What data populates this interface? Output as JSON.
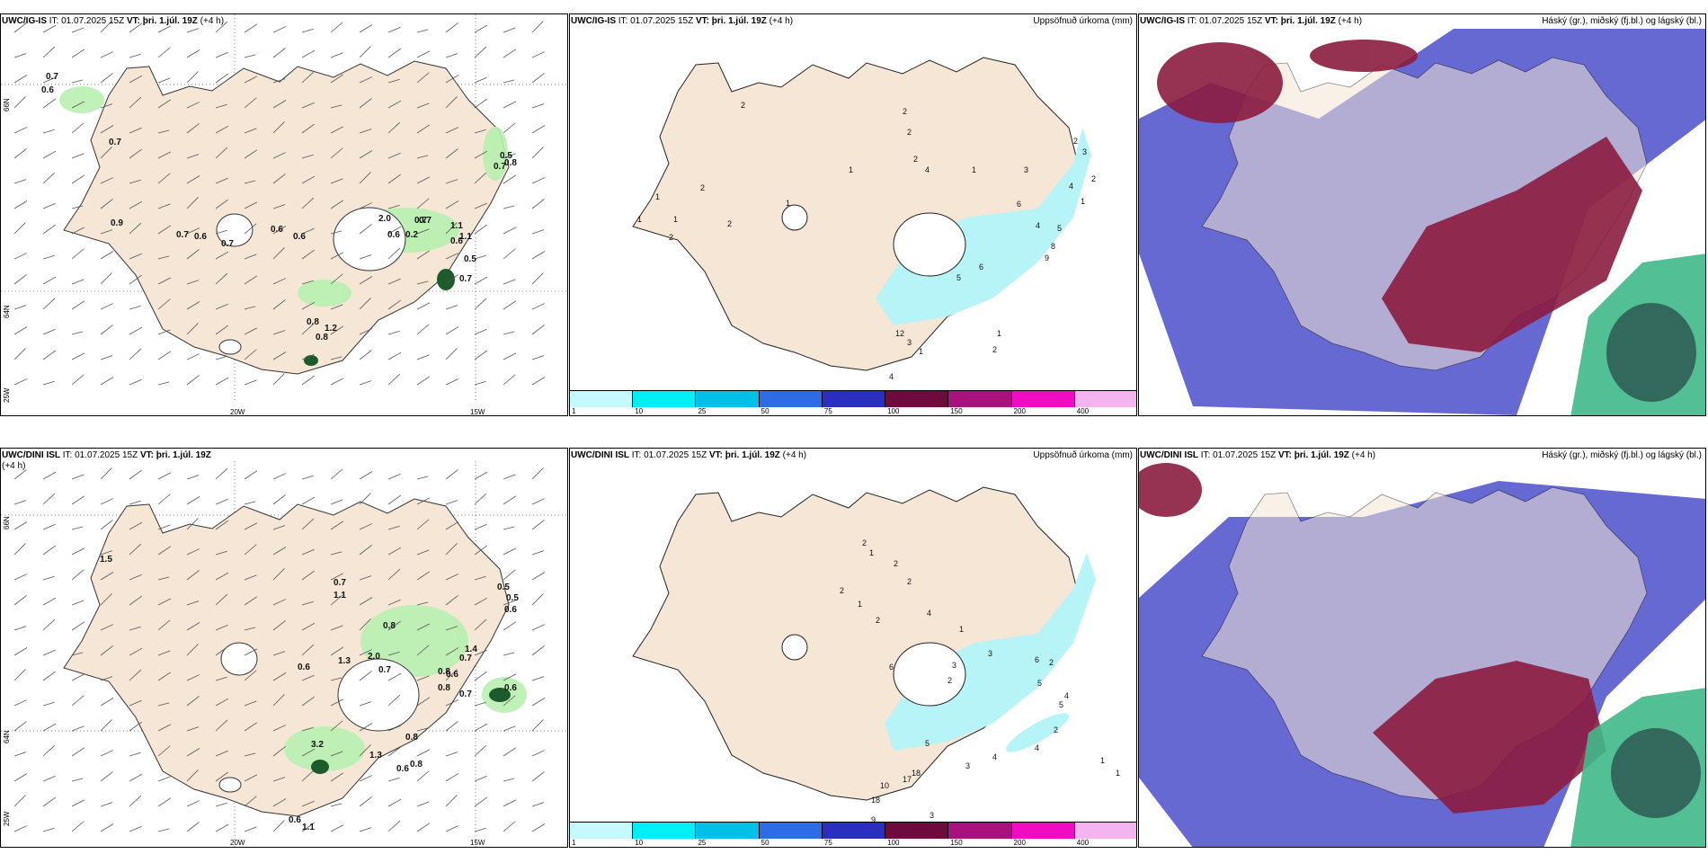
{
  "colors": {
    "land": "#f5e6d6",
    "green_light": "#b8f0b0",
    "green_dark": "#1d5a2c",
    "cyan_precip": "#b6f4f7",
    "cloud_high": "#8b1c3f",
    "cloud_mid": "#4b4fc9",
    "cloud_low": "#3fb88a"
  },
  "rows": [
    {
      "model": "UWC/IG-IS",
      "it_label": "IT:",
      "it_value": "01.07.2025 15Z",
      "vt_label": "VT:",
      "vt_value": "þri. 1.júl. 19Z",
      "lead": "(+4 h)",
      "precip_title": "Uppsöfnuð úrkoma (mm)",
      "cloud_title": "Háský (gr.), miðský (fj.bl.) og lágský (bl.)",
      "lon_labels": [
        "20W",
        "15W"
      ],
      "lat_labels": [
        "66N",
        "64N",
        "25W"
      ],
      "wind_values": [
        "0.7",
        "0.6",
        "0.7",
        "0.9",
        "0.7",
        "0.6",
        "0.7",
        "0.6",
        "0.6",
        "2.0",
        "0.7",
        "0.6",
        "0.2",
        "0.7",
        "1.1",
        "0.5",
        "0.7",
        "0.6",
        "0.8",
        "1.2",
        "0.8",
        "1.1",
        "0.5",
        "0.8",
        "0.7"
      ],
      "precip_values": [
        "2",
        "2",
        "1",
        "1",
        "1",
        "2",
        "2",
        "1",
        "2",
        "2",
        "2",
        "1",
        "4",
        "1",
        "3",
        "2",
        "3",
        "4",
        "1",
        "6",
        "4",
        "5",
        "8",
        "9",
        "6",
        "5",
        "12",
        "3",
        "1",
        "1",
        "2",
        "4",
        "2"
      ]
    },
    {
      "model": "UWC/DINI ISL",
      "it_label": "IT:",
      "it_value": "01.07.2025 15Z",
      "vt_label": "VT:",
      "vt_value": "þri. 1.júl. 19Z",
      "lead": "(+4 h)",
      "precip_title": "Uppsöfnuð úrkoma (mm)",
      "cloud_title": "Háský (gr.), miðský (fj.bl.) og lágský (bl.)",
      "lon_labels": [
        "20W",
        "15W"
      ],
      "lat_labels": [
        "66N",
        "64N",
        "25W"
      ],
      "wind_values": [
        "1.5",
        "0.7",
        "1.1",
        "0.8",
        "2.0",
        "0.6",
        "1.3",
        "0.7",
        "0.8",
        "1.4",
        "0.5",
        "0.5",
        "0.6",
        "0.8",
        "0.7",
        "0.6",
        "0.8",
        "0.7",
        "0.6",
        "3.2",
        "1.3",
        "0.8",
        "0.6",
        "0.6",
        "1.1"
      ],
      "precip_values": [
        "2",
        "2",
        "1",
        "2",
        "1",
        "2",
        "4",
        "2",
        "1",
        "3",
        "2",
        "6",
        "3",
        "2",
        "6",
        "5",
        "4",
        "5",
        "2",
        "4",
        "4",
        "3",
        "18",
        "17",
        "5",
        "10",
        "3",
        "18",
        "9",
        "1",
        "1",
        "2",
        "1",
        "1"
      ]
    }
  ],
  "colorbar": {
    "ticks": [
      "1",
      "10",
      "25",
      "50",
      "75",
      "100",
      "150",
      "200",
      "400"
    ],
    "colors": [
      "#c4fafc",
      "#00eef5",
      "#00bfe8",
      "#2e6be6",
      "#2b2fbf",
      "#6e0a3c",
      "#a7127f",
      "#f00cc0",
      "#f5b4f0"
    ]
  }
}
